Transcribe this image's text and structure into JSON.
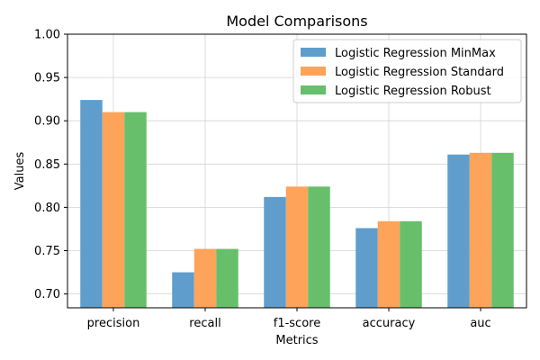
{
  "chart_data": {
    "type": "bar",
    "title": "Model Comparisons",
    "xlabel": "Metrics",
    "ylabel": "Values",
    "categories": [
      "precision",
      "recall",
      "f1-score",
      "accuracy",
      "auc"
    ],
    "ylim": [
      0.684,
      1.0
    ],
    "yticks": [
      0.7,
      0.75,
      0.8,
      0.85,
      0.9,
      0.95,
      1.0
    ],
    "ytick_labels": [
      "0.70",
      "0.75",
      "0.80",
      "0.85",
      "0.90",
      "0.95",
      "1.00"
    ],
    "grid": true,
    "legend_position": "top-right",
    "series": [
      {
        "name": "Logistic Regression MinMax",
        "color": "#5f9dcc",
        "values": [
          0.924,
          0.725,
          0.812,
          0.776,
          0.861
        ]
      },
      {
        "name": "Logistic Regression Standard",
        "color": "#fda35a",
        "values": [
          0.91,
          0.752,
          0.824,
          0.784,
          0.863
        ]
      },
      {
        "name": "Logistic Regression Robust",
        "color": "#67bf6b",
        "values": [
          0.91,
          0.752,
          0.824,
          0.784,
          0.863
        ]
      }
    ]
  }
}
